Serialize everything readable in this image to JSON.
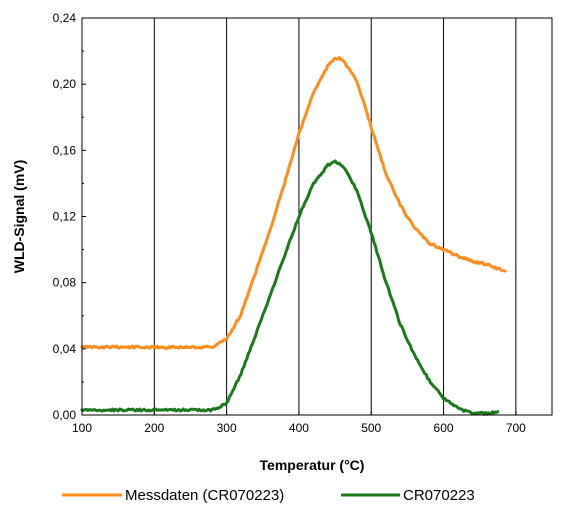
{
  "chart_data": {
    "type": "line",
    "title": "",
    "xlabel": "Temperatur (°C)",
    "ylabel": "WLD-Signal (mV)",
    "xlim": [
      100,
      750
    ],
    "ylim": [
      0.0,
      0.24
    ],
    "x_ticks": [
      100,
      200,
      300,
      400,
      500,
      600,
      700
    ],
    "x_tick_labels": [
      "100",
      "200",
      "300",
      "400",
      "500",
      "600",
      "700"
    ],
    "y_ticks": [
      0.0,
      0.04,
      0.08,
      0.12,
      0.16,
      0.2,
      0.24
    ],
    "y_tick_labels": [
      "0,00",
      "0,04",
      "0,08",
      "0,12",
      "0,16",
      "0,20",
      "0,24"
    ],
    "vertical_grid": true,
    "horizontal_grid": false,
    "legend_position": "bottom",
    "series": [
      {
        "name": "Messdaten (CR070223)",
        "color": "#ff8c1a",
        "x": [
          100,
          150,
          200,
          250,
          280,
          300,
          320,
          340,
          360,
          380,
          400,
          420,
          440,
          450,
          460,
          480,
          500,
          520,
          540,
          560,
          580,
          600,
          620,
          640,
          660,
          685
        ],
        "y": [
          0.041,
          0.041,
          0.041,
          0.041,
          0.041,
          0.046,
          0.061,
          0.086,
          0.112,
          0.14,
          0.17,
          0.195,
          0.211,
          0.216,
          0.215,
          0.202,
          0.174,
          0.146,
          0.127,
          0.113,
          0.104,
          0.1,
          0.096,
          0.093,
          0.091,
          0.087
        ]
      },
      {
        "name": "CR070223",
        "color": "#1a7a1a",
        "x": [
          100,
          150,
          200,
          250,
          280,
          300,
          320,
          340,
          360,
          380,
          400,
          420,
          440,
          450,
          460,
          480,
          500,
          520,
          540,
          560,
          580,
          600,
          620,
          640,
          660,
          675
        ],
        "y": [
          0.003,
          0.003,
          0.003,
          0.003,
          0.003,
          0.007,
          0.025,
          0.048,
          0.072,
          0.096,
          0.12,
          0.14,
          0.151,
          0.153,
          0.151,
          0.136,
          0.11,
          0.081,
          0.055,
          0.036,
          0.021,
          0.01,
          0.004,
          0.001,
          0.001,
          0.002
        ]
      }
    ]
  }
}
